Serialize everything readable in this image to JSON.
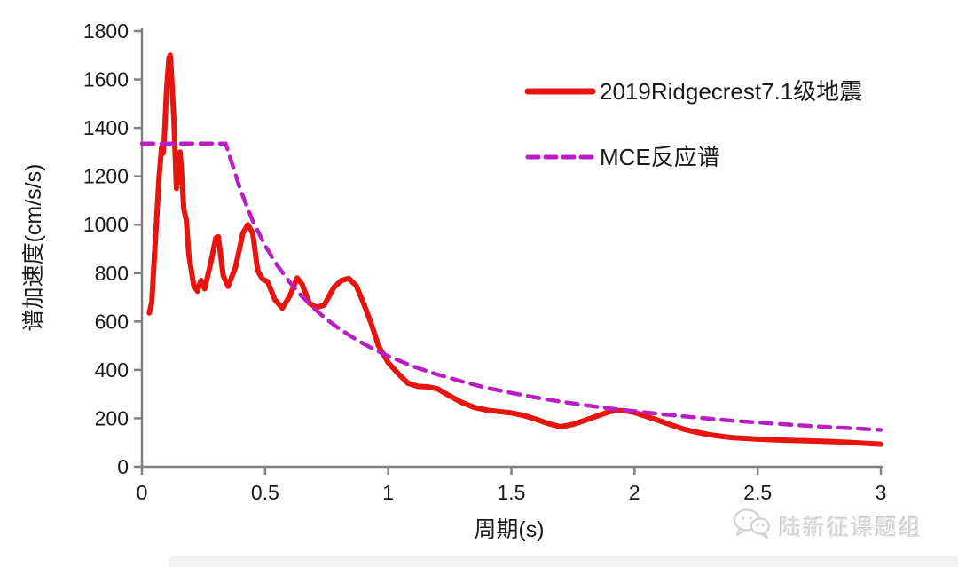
{
  "watermark": {
    "label": "陆新征课题组",
    "icon": "wechat-icon"
  },
  "chart_data": {
    "type": "line",
    "title": "",
    "xlabel": "周期(s)",
    "ylabel": "谱加速度(cm/s/s)",
    "xlim": [
      0,
      3
    ],
    "ylim": [
      0,
      1800
    ],
    "grid": false,
    "legend_position": "upper-right-inside",
    "x_ticks": {
      "values": [
        0,
        0.5,
        1,
        1.5,
        2,
        2.5,
        3
      ],
      "labels": [
        "0",
        "0.5",
        "1",
        "1.5",
        "2",
        "2.5",
        "3"
      ]
    },
    "y_ticks": {
      "values": [
        0,
        200,
        400,
        600,
        800,
        1000,
        1200,
        1400,
        1600,
        1800
      ],
      "labels": [
        "0",
        "200",
        "400",
        "600",
        "800",
        "1000",
        "1200",
        "1400",
        "1600",
        "1800"
      ]
    },
    "series": [
      {
        "name": "2019Ridgecrest7.1级地震",
        "color": "#e8150f",
        "line_style": "solid",
        "line_width": 6,
        "points": [
          [
            0.03,
            635
          ],
          [
            0.04,
            680
          ],
          [
            0.05,
            860
          ],
          [
            0.06,
            1030
          ],
          [
            0.07,
            1200
          ],
          [
            0.08,
            1320
          ],
          [
            0.085,
            1295
          ],
          [
            0.09,
            1340
          ],
          [
            0.1,
            1560
          ],
          [
            0.11,
            1690
          ],
          [
            0.115,
            1700
          ],
          [
            0.12,
            1620
          ],
          [
            0.13,
            1430
          ],
          [
            0.14,
            1150
          ],
          [
            0.15,
            1265
          ],
          [
            0.155,
            1300
          ],
          [
            0.16,
            1230
          ],
          [
            0.17,
            1065
          ],
          [
            0.18,
            1020
          ],
          [
            0.19,
            880
          ],
          [
            0.21,
            750
          ],
          [
            0.225,
            725
          ],
          [
            0.24,
            770
          ],
          [
            0.255,
            735
          ],
          [
            0.28,
            845
          ],
          [
            0.3,
            945
          ],
          [
            0.31,
            950
          ],
          [
            0.33,
            790
          ],
          [
            0.35,
            745
          ],
          [
            0.38,
            825
          ],
          [
            0.41,
            965
          ],
          [
            0.43,
            1000
          ],
          [
            0.45,
            965
          ],
          [
            0.47,
            810
          ],
          [
            0.49,
            775
          ],
          [
            0.51,
            765
          ],
          [
            0.54,
            690
          ],
          [
            0.57,
            655
          ],
          [
            0.6,
            705
          ],
          [
            0.63,
            780
          ],
          [
            0.65,
            755
          ],
          [
            0.68,
            675
          ],
          [
            0.71,
            658
          ],
          [
            0.74,
            668
          ],
          [
            0.78,
            742
          ],
          [
            0.81,
            770
          ],
          [
            0.84,
            778
          ],
          [
            0.87,
            748
          ],
          [
            0.9,
            675
          ],
          [
            0.93,
            595
          ],
          [
            0.96,
            500
          ],
          [
            1,
            430
          ],
          [
            1.04,
            385
          ],
          [
            1.08,
            345
          ],
          [
            1.12,
            332
          ],
          [
            1.16,
            330
          ],
          [
            1.2,
            322
          ],
          [
            1.25,
            292
          ],
          [
            1.3,
            265
          ],
          [
            1.35,
            245
          ],
          [
            1.4,
            234
          ],
          [
            1.45,
            228
          ],
          [
            1.5,
            222
          ],
          [
            1.55,
            212
          ],
          [
            1.6,
            196
          ],
          [
            1.65,
            178
          ],
          [
            1.7,
            165
          ],
          [
            1.75,
            175
          ],
          [
            1.8,
            192
          ],
          [
            1.85,
            210
          ],
          [
            1.9,
            228
          ],
          [
            1.93,
            232
          ],
          [
            1.97,
            230
          ],
          [
            2,
            224
          ],
          [
            2.05,
            207
          ],
          [
            2.1,
            190
          ],
          [
            2.15,
            172
          ],
          [
            2.2,
            155
          ],
          [
            2.25,
            143
          ],
          [
            2.3,
            133
          ],
          [
            2.35,
            126
          ],
          [
            2.4,
            120
          ],
          [
            2.5,
            114
          ],
          [
            2.6,
            110
          ],
          [
            2.7,
            107
          ],
          [
            2.8,
            104
          ],
          [
            2.9,
            99
          ],
          [
            3,
            93
          ]
        ]
      },
      {
        "name": "MCE反应谱",
        "color": "#bb1dc5",
        "line_style": "dashed",
        "line_width": 4.5,
        "points": [
          [
            0,
            1335
          ],
          [
            0.34,
            1335
          ],
          [
            0.4,
            1143
          ],
          [
            0.45,
            1016
          ],
          [
            0.5,
            914
          ],
          [
            0.55,
            831
          ],
          [
            0.6,
            762
          ],
          [
            0.65,
            703
          ],
          [
            0.7,
            653
          ],
          [
            0.75,
            609
          ],
          [
            0.8,
            571
          ],
          [
            0.85,
            538
          ],
          [
            0.9,
            508
          ],
          [
            0.95,
            481
          ],
          [
            1,
            457
          ],
          [
            1.1,
            415
          ],
          [
            1.2,
            381
          ],
          [
            1.3,
            352
          ],
          [
            1.4,
            326
          ],
          [
            1.5,
            305
          ],
          [
            1.6,
            286
          ],
          [
            1.7,
            269
          ],
          [
            1.8,
            254
          ],
          [
            1.9,
            241
          ],
          [
            2,
            229
          ],
          [
            2.1,
            218
          ],
          [
            2.2,
            208
          ],
          [
            2.3,
            199
          ],
          [
            2.4,
            190
          ],
          [
            2.5,
            183
          ],
          [
            2.6,
            176
          ],
          [
            2.7,
            169
          ],
          [
            2.8,
            163
          ],
          [
            2.9,
            158
          ],
          [
            3,
            152
          ]
        ]
      }
    ]
  }
}
